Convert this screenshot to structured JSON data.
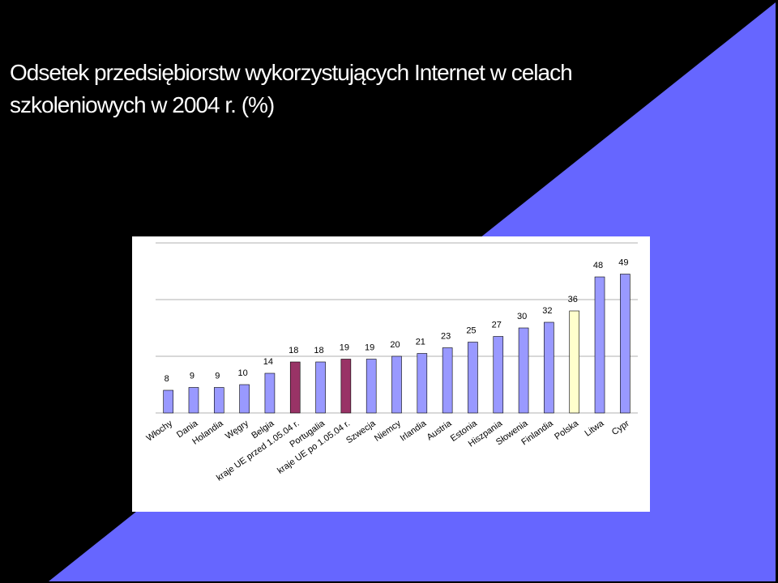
{
  "chart_data": {
    "type": "bar",
    "title": "Odsetek przedsiębiorstw wykorzystujących Internet w celach szkoleniowych w 2004 r. (%)",
    "categories": [
      "Włochy",
      "Dania",
      "Holandia",
      "Węgry",
      "Belgia",
      "kraje UE przed 1.05.04 r.",
      "Portugalia",
      "kraje UE po 1.05.04 r.",
      "Szwecja",
      "Niemcy",
      "Irlandia",
      "Austria",
      "Estonia",
      "Hiszpania",
      "Słowenia",
      "Finlandia",
      "Polska",
      "Litwa",
      "Cypr"
    ],
    "values": [
      8,
      9,
      9,
      10,
      14,
      18,
      18,
      19,
      19,
      20,
      21,
      23,
      25,
      27,
      30,
      32,
      36,
      48,
      49
    ],
    "colors": [
      "#9999ff",
      "#9999ff",
      "#9999ff",
      "#9999ff",
      "#9999ff",
      "#993366",
      "#9999ff",
      "#993366",
      "#9999ff",
      "#9999ff",
      "#9999ff",
      "#9999ff",
      "#9999ff",
      "#9999ff",
      "#9999ff",
      "#9999ff",
      "#ffffcc",
      "#9999ff",
      "#9999ff"
    ],
    "ylim": [
      0,
      60
    ],
    "yticks": [
      0,
      20,
      40,
      60
    ],
    "grid": true
  }
}
